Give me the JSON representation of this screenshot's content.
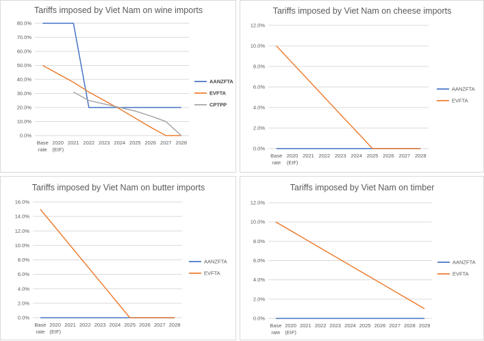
{
  "chart_data": [
    {
      "type": "line",
      "title": "Tariffs imposed by Viet Nam on wine imports",
      "categories": [
        "Base rate (EIF)",
        "2020",
        "2021",
        "2022",
        "2023",
        "2024",
        "2025",
        "2026",
        "2027",
        "2028"
      ],
      "category_lines": [
        [
          "Base",
          "rate"
        ],
        [
          "2020",
          "(EIF)"
        ],
        [
          "2021"
        ],
        [
          "2022"
        ],
        [
          "2023"
        ],
        [
          "2024"
        ],
        [
          "2025"
        ],
        [
          "2026"
        ],
        [
          "2027"
        ],
        [
          "2028"
        ]
      ],
      "ylim": [
        0,
        80
      ],
      "ytick_step": 10,
      "yticks": [
        "0.0%",
        "10.0%",
        "20.0%",
        "30.0%",
        "40.0%",
        "50.0%",
        "60.0%",
        "70.0%",
        "80.0%"
      ],
      "legend_bold": true,
      "series": [
        {
          "name": "AANZFTA",
          "color": "#4472c4",
          "values": [
            80,
            80,
            80,
            20,
            20,
            20,
            20,
            20,
            20,
            20
          ]
        },
        {
          "name": "EVFTA",
          "color": "#ed7d31",
          "values": [
            50,
            44,
            38,
            31,
            25,
            19,
            12.5,
            6,
            0,
            0
          ]
        },
        {
          "name": "CPTPP",
          "color": "#a5a5a5",
          "values": [
            null,
            null,
            31,
            25,
            22.5,
            20,
            17.5,
            14,
            10,
            0
          ]
        }
      ]
    },
    {
      "type": "line",
      "title": "Tariffs imposed by Viet Nam on cheese imports",
      "categories": [
        "Base rate (EIF)",
        "2020",
        "2021",
        "2022",
        "2023",
        "2024",
        "2025",
        "2026",
        "2027",
        "2028"
      ],
      "category_lines": [
        [
          "Base",
          "rate"
        ],
        [
          "2020",
          "(EIF)"
        ],
        [
          "2021"
        ],
        [
          "2022"
        ],
        [
          "2023"
        ],
        [
          "2024"
        ],
        [
          "2025"
        ],
        [
          "2026"
        ],
        [
          "2027"
        ],
        [
          "2028"
        ]
      ],
      "ylim": [
        0,
        12
      ],
      "ytick_step": 2,
      "yticks": [
        "0.0%",
        "2.0%",
        "4.0%",
        "6.0%",
        "8.0%",
        "10.0%",
        "12.0%"
      ],
      "legend_bold": false,
      "series": [
        {
          "name": "AANZFTA",
          "color": "#4472c4",
          "values": [
            0,
            0,
            0,
            0,
            0,
            0,
            0,
            0,
            0,
            0
          ]
        },
        {
          "name": "EVFTA",
          "color": "#ed7d31",
          "values": [
            10,
            8.33,
            6.67,
            5,
            3.33,
            1.67,
            0,
            0,
            0,
            0
          ]
        }
      ]
    },
    {
      "type": "line",
      "title": "Tariffs imposed by Viet Nam on butter imports",
      "categories": [
        "Base rate (EIF)",
        "2020",
        "2021",
        "2022",
        "2023",
        "2024",
        "2025",
        "2026",
        "2027",
        "2028"
      ],
      "category_lines": [
        [
          "Base",
          "rate"
        ],
        [
          "2020",
          "(EIF)"
        ],
        [
          "2021"
        ],
        [
          "2022"
        ],
        [
          "2023"
        ],
        [
          "2024"
        ],
        [
          "2025"
        ],
        [
          "2026"
        ],
        [
          "2027"
        ],
        [
          "2028"
        ]
      ],
      "ylim": [
        0,
        16
      ],
      "ytick_step": 2,
      "yticks": [
        "0.0%",
        "2.0%",
        "4.0%",
        "6.0%",
        "8.0%",
        "10.0%",
        "12.0%",
        "14.0%",
        "16.0%"
      ],
      "legend_bold": false,
      "series": [
        {
          "name": "AANZFTA",
          "color": "#4472c4",
          "values": [
            0,
            0,
            0,
            0,
            0,
            0,
            0,
            0,
            0,
            0
          ]
        },
        {
          "name": "EVFTA",
          "color": "#ed7d31",
          "values": [
            15,
            12.5,
            10,
            7.5,
            5,
            2.5,
            0,
            0,
            0,
            0
          ]
        }
      ]
    },
    {
      "type": "line",
      "title": "Tariffs imposed by Viet Nam on timber",
      "categories": [
        "Base rate (EIF)",
        "2020",
        "2021",
        "2022",
        "2023",
        "2024",
        "2025",
        "2026",
        "2027",
        "2028",
        "2029"
      ],
      "category_lines": [
        [
          "Base",
          "rate"
        ],
        [
          "2020",
          "(EIF)"
        ],
        [
          "2021"
        ],
        [
          "2022"
        ],
        [
          "2023"
        ],
        [
          "2024"
        ],
        [
          "2025"
        ],
        [
          "2026"
        ],
        [
          "2027"
        ],
        [
          "2028"
        ],
        [
          "2029"
        ]
      ],
      "ylim": [
        0,
        12
      ],
      "ytick_step": 2,
      "yticks": [
        "0.0%",
        "2.0%",
        "4.0%",
        "6.0%",
        "8.0%",
        "10.0%",
        "12.0%"
      ],
      "legend_bold": false,
      "series": [
        {
          "name": "AANZFTA",
          "color": "#4472c4",
          "values": [
            0,
            0,
            0,
            0,
            0,
            0,
            0,
            0,
            0,
            0,
            0
          ]
        },
        {
          "name": "EVFTA",
          "color": "#ed7d31",
          "values": [
            10,
            9.1,
            8.2,
            7.3,
            6.4,
            5.5,
            4.6,
            3.7,
            2.8,
            1.9,
            1.0
          ]
        }
      ]
    }
  ]
}
